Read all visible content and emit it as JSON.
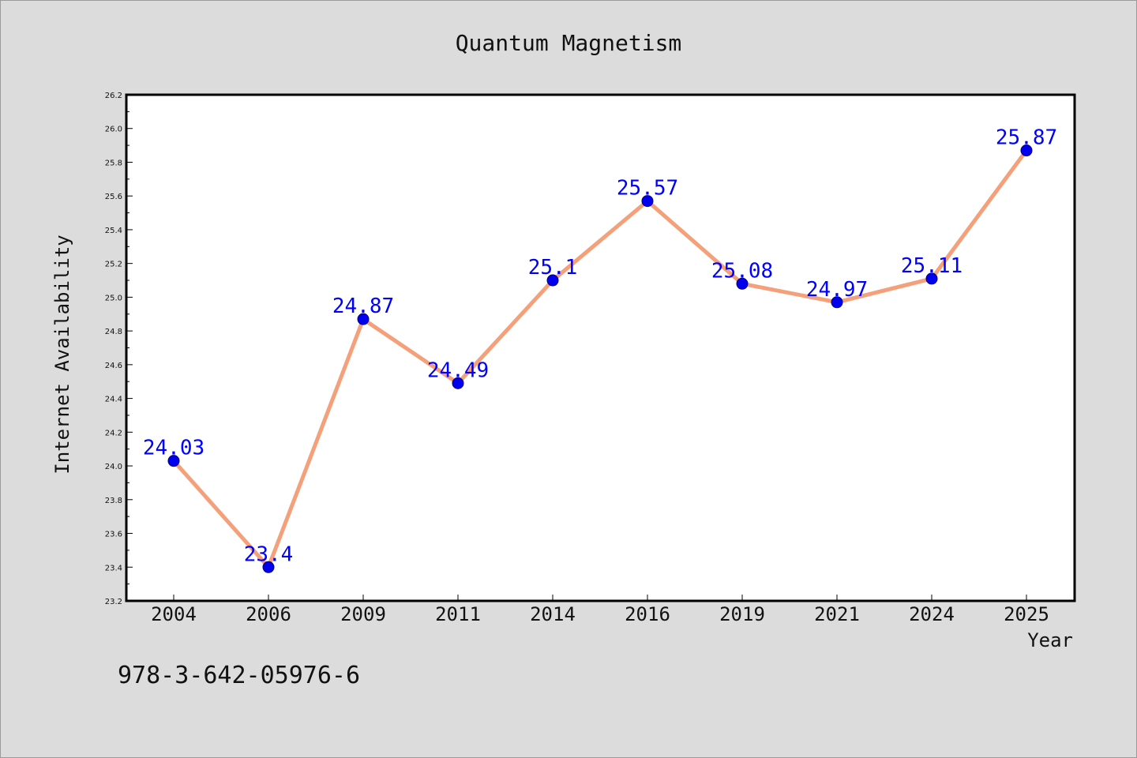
{
  "footer": {
    "isbn": "978-3-642-05976-6"
  },
  "chart_data": {
    "type": "line",
    "title": "Quantum Magnetism",
    "xlabel": "Year",
    "ylabel": "Internet Availability",
    "categories": [
      "2004",
      "2006",
      "2009",
      "2011",
      "2014",
      "2016",
      "2019",
      "2021",
      "2024",
      "2025"
    ],
    "series": [
      {
        "values": [
          24.03,
          23.4,
          24.87,
          24.49,
          25.1,
          25.57,
          25.08,
          24.97,
          25.11,
          25.87
        ],
        "data_labels": [
          "24.03",
          "23.4",
          "24.87",
          "24.49",
          "25.1",
          "25.57",
          "25.08",
          "24.97",
          "25.11",
          "25.87"
        ],
        "line_color": "#f4a07a",
        "marker_color": "#0000ee",
        "label_color": "#0000ff"
      }
    ],
    "ylim": [
      23.2,
      26.2
    ],
    "yticks": [
      "23.2",
      "23.4",
      "23.6",
      "23.8",
      "24.0",
      "24.2",
      "24.4",
      "24.6",
      "24.8",
      "25.0",
      "25.2",
      "25.4",
      "25.6",
      "25.8",
      "26.0",
      "26.2"
    ],
    "grid": false,
    "legend": "none",
    "colors": {
      "background": "#dcdcdc",
      "plot_background": "#ffffff",
      "axis": "#000000"
    }
  }
}
